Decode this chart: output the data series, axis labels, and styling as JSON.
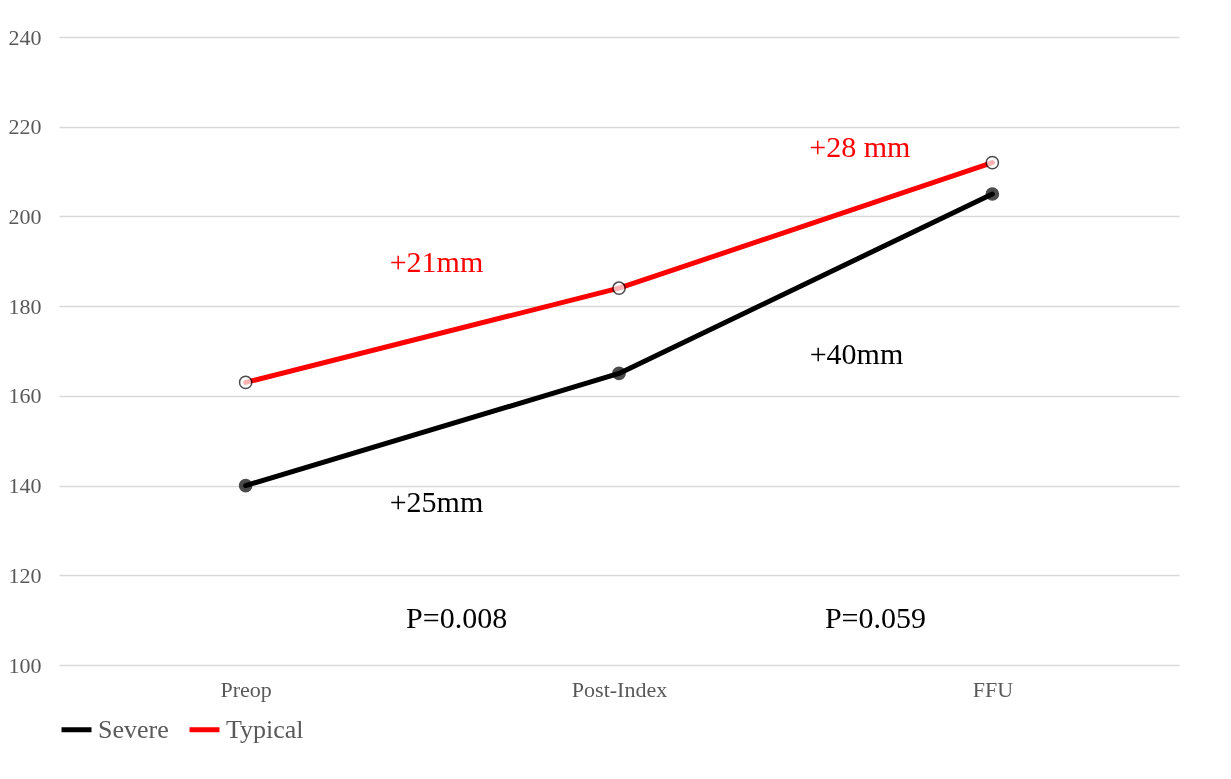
{
  "chart_data": {
    "type": "line",
    "categories": [
      "Preop",
      "Post-Index",
      "FFU"
    ],
    "series": [
      {
        "name": "Severe",
        "color": "#000000",
        "values": [
          140,
          165,
          205
        ]
      },
      {
        "name": "Typical",
        "color": "#ff0000",
        "values": [
          163,
          184,
          212
        ]
      }
    ],
    "ylim": [
      100,
      240
    ],
    "yticks": [
      100,
      120,
      140,
      160,
      180,
      200,
      220,
      240
    ],
    "grid": "y",
    "legend": "bottom",
    "marker": "circle",
    "annotations": [
      "+21mm",
      "+28 mm",
      "+40mm",
      "+25mm",
      "P=0.008",
      "P=0.059"
    ]
  }
}
